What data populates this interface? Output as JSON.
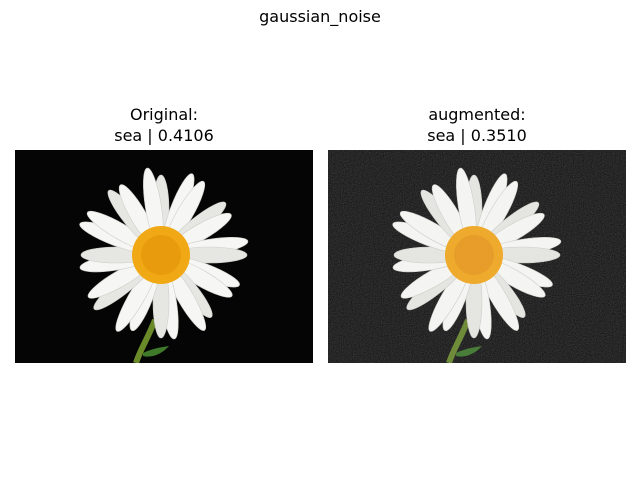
{
  "figure": {
    "title": "gaussian_noise"
  },
  "panels": [
    {
      "heading": "Original:",
      "caption": "sea | 0.4106",
      "image": "white-daisy-on-black"
    },
    {
      "heading": "augmented:",
      "caption": "sea | 0.3510",
      "image": "white-daisy-on-black-noisy"
    }
  ],
  "colors": {
    "background": "#050505",
    "petal": "#f4f4f2",
    "center": "#f0a915",
    "stem": "#6a8a2a"
  }
}
